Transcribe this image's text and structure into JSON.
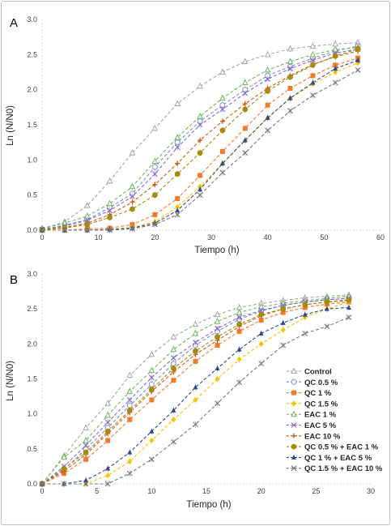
{
  "chart_data": [
    {
      "panel_label": "A",
      "type": "line",
      "xlabel": "Tiempo (h)",
      "ylabel": "Ln (N/N0)",
      "xlim": [
        0,
        60
      ],
      "ylim": [
        0,
        3.0
      ],
      "xticks": [
        0,
        10,
        20,
        30,
        40,
        50,
        60
      ],
      "yticks": [
        0.0,
        0.5,
        1.0,
        1.5,
        2.0,
        2.5,
        3.0
      ],
      "x": [
        0,
        4,
        8,
        12,
        16,
        20,
        24,
        28,
        32,
        36,
        40,
        44,
        48,
        52,
        56
      ],
      "series": [
        {
          "values": [
            0.02,
            0.12,
            0.35,
            0.7,
            1.1,
            1.45,
            1.8,
            2.05,
            2.25,
            2.4,
            2.5,
            2.58,
            2.62,
            2.65,
            2.67
          ]
        },
        {
          "values": [
            0.01,
            0.07,
            0.15,
            0.32,
            0.52,
            0.9,
            1.25,
            1.55,
            1.78,
            2.0,
            2.2,
            2.33,
            2.45,
            2.55,
            2.62
          ]
        },
        {
          "values": [
            0.0,
            0.0,
            0.02,
            0.03,
            0.08,
            0.22,
            0.45,
            0.78,
            1.12,
            1.45,
            1.78,
            2.02,
            2.2,
            2.35,
            2.45
          ]
        },
        {
          "values": [
            0.0,
            0.0,
            0.0,
            0.01,
            0.04,
            0.12,
            0.33,
            0.62,
            0.95,
            1.28,
            1.6,
            1.88,
            2.08,
            2.25,
            2.38
          ]
        },
        {
          "values": [
            0.02,
            0.1,
            0.2,
            0.38,
            0.62,
            0.98,
            1.32,
            1.62,
            1.88,
            2.1,
            2.28,
            2.4,
            2.5,
            2.57,
            2.6
          ]
        },
        {
          "values": [
            0.01,
            0.06,
            0.14,
            0.28,
            0.48,
            0.8,
            1.18,
            1.5,
            1.72,
            1.95,
            2.15,
            2.3,
            2.42,
            2.52,
            2.58
          ]
        },
        {
          "values": [
            0.01,
            0.04,
            0.1,
            0.22,
            0.4,
            0.65,
            0.95,
            1.28,
            1.55,
            1.8,
            2.02,
            2.2,
            2.36,
            2.47,
            2.55
          ]
        },
        {
          "values": [
            0.0,
            0.03,
            0.08,
            0.18,
            0.3,
            0.5,
            0.8,
            1.1,
            1.42,
            1.72,
            1.98,
            2.18,
            2.35,
            2.48,
            2.58
          ]
        },
        {
          "values": [
            0.0,
            0.0,
            0.0,
            0.01,
            0.03,
            0.1,
            0.28,
            0.58,
            0.95,
            1.28,
            1.6,
            1.88,
            2.1,
            2.3,
            2.42
          ]
        },
        {
          "values": [
            0.0,
            0.0,
            0.0,
            0.0,
            0.02,
            0.08,
            0.22,
            0.5,
            0.82,
            1.1,
            1.42,
            1.7,
            1.92,
            2.1,
            2.28
          ]
        }
      ]
    },
    {
      "panel_label": "B",
      "type": "line",
      "xlabel": "Tiempo (h)",
      "ylabel": "Ln (N/N0)",
      "xlim": [
        0,
        30
      ],
      "ylim": [
        0,
        3.0
      ],
      "xticks": [
        0,
        5,
        10,
        15,
        20,
        25,
        30
      ],
      "yticks": [
        0.0,
        0.5,
        1.0,
        1.5,
        2.0,
        2.5,
        3.0
      ],
      "x": [
        0,
        2,
        4,
        6,
        8,
        10,
        12,
        14,
        16,
        18,
        20,
        22,
        24,
        26,
        28
      ],
      "legend": [
        "Control",
        "QC 0.5 %",
        "QC 1 %",
        "QC 1.5 %",
        "EAC 1 %",
        "EAC 5 %",
        "EAC 10 %",
        "QC 0.5 % + EAC 1 %",
        "QC 1 % + EAC 5 %",
        "QC 1.5 % + EAC 10 %"
      ],
      "series": [
        {
          "name": "Control",
          "values": [
            0.0,
            0.4,
            0.8,
            1.15,
            1.55,
            1.85,
            2.1,
            2.28,
            2.42,
            2.52,
            2.58,
            2.62,
            2.66,
            2.68,
            2.7
          ]
        },
        {
          "name": "QC 0.5 %",
          "values": [
            0.0,
            0.2,
            0.5,
            0.8,
            1.12,
            1.42,
            1.72,
            1.98,
            2.18,
            2.35,
            2.47,
            2.55,
            2.6,
            2.63,
            2.65
          ]
        },
        {
          "name": "QC 1 %",
          "values": [
            0.0,
            0.15,
            0.35,
            0.62,
            0.92,
            1.2,
            1.48,
            1.75,
            1.98,
            2.18,
            2.34,
            2.45,
            2.52,
            2.57,
            2.6
          ]
        },
        {
          "name": "QC 1.5 %",
          "values": [
            0.0,
            0.0,
            0.0,
            0.12,
            0.32,
            0.62,
            0.92,
            1.2,
            1.5,
            1.78,
            2.0,
            2.2,
            2.38,
            2.5,
            2.6
          ]
        },
        {
          "name": "EAC 1 %",
          "values": [
            0.0,
            0.38,
            0.62,
            0.98,
            1.32,
            1.62,
            1.92,
            2.15,
            2.32,
            2.45,
            2.53,
            2.58,
            2.62,
            2.65,
            2.68
          ]
        },
        {
          "name": "EAC 5 %",
          "values": [
            0.0,
            0.25,
            0.55,
            0.88,
            1.2,
            1.52,
            1.8,
            2.02,
            2.22,
            2.38,
            2.48,
            2.55,
            2.6,
            2.63,
            2.65
          ]
        },
        {
          "name": "EAC 10 %",
          "values": [
            0.0,
            0.18,
            0.42,
            0.72,
            1.02,
            1.32,
            1.6,
            1.85,
            2.05,
            2.25,
            2.4,
            2.5,
            2.56,
            2.6,
            2.62
          ]
        },
        {
          "name": "QC 0.5 % + EAC 1 %",
          "values": [
            0.0,
            0.22,
            0.45,
            0.75,
            1.05,
            1.35,
            1.65,
            1.9,
            2.1,
            2.28,
            2.42,
            2.5,
            2.56,
            2.6,
            2.63
          ]
        },
        {
          "name": "QC 1 % + EAC 5 %",
          "values": [
            0.0,
            0.0,
            0.05,
            0.22,
            0.45,
            0.75,
            1.05,
            1.38,
            1.65,
            1.92,
            2.15,
            2.3,
            2.42,
            2.5,
            2.52
          ]
        },
        {
          "name": "QC 1.5 % + EAC 10 %",
          "values": [
            0.0,
            0.0,
            0.0,
            0.0,
            0.15,
            0.35,
            0.6,
            0.85,
            1.15,
            1.45,
            1.72,
            1.98,
            2.15,
            2.25,
            2.38
          ]
        }
      ]
    }
  ],
  "colors": [
    "#a6a6a6",
    "#7b8fd1",
    "#f07b2c",
    "#f5c400",
    "#70b85a",
    "#8a6cc9",
    "#c85a14",
    "#a68a0f",
    "#2e4a8a",
    "#7a7a7a"
  ],
  "markers": [
    "triangle-open",
    "circle-open",
    "square",
    "diamond",
    "triangle-open",
    "x",
    "plus",
    "circle",
    "triangle",
    "x"
  ]
}
